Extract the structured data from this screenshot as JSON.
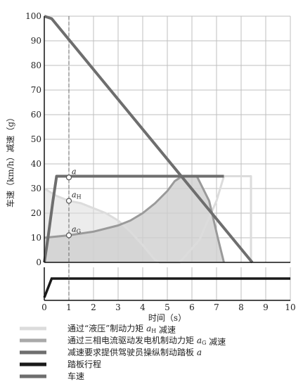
{
  "chart_data": {
    "type": "line",
    "x_axis": {
      "label": "时间（s）",
      "ticks": [
        "0",
        "1",
        "2",
        "3",
        "4",
        "5",
        "6",
        "7",
        "8",
        "9",
        "10"
      ],
      "range": [
        0,
        10
      ]
    },
    "y_axis": {
      "label": "车速（km/h）减速（g）",
      "ticks": [
        "0",
        "10",
        "20",
        "30",
        "40",
        "50",
        "60",
        "70",
        "80",
        "90",
        "100"
      ],
      "range": [
        0,
        100
      ]
    },
    "grid": true,
    "marker_line_x": 1,
    "series": [
      {
        "name": "通过“液压”制动力矩 aH 减速",
        "color": "#dcdcdc",
        "kind": "area+line",
        "points": [
          [
            0,
            30
          ],
          [
            0.5,
            27
          ],
          [
            1,
            25
          ],
          [
            1.5,
            24
          ],
          [
            2,
            22
          ],
          [
            2.5,
            20
          ],
          [
            3,
            17
          ],
          [
            3.5,
            12.5
          ],
          [
            4,
            7
          ],
          [
            4.5,
            1
          ],
          [
            4.7,
            0
          ],
          [
            5.5,
            0
          ],
          [
            6.3,
            9
          ],
          [
            7,
            25
          ],
          [
            7.3,
            35
          ],
          [
            8.4,
            35
          ],
          [
            8.4,
            0
          ]
        ]
      },
      {
        "name": "通过三相电流驱动发电机制动力矩 aG 减速",
        "color": "#a9a9a9",
        "kind": "area",
        "points": [
          [
            0,
            10
          ],
          [
            1,
            11
          ],
          [
            2,
            12.5
          ],
          [
            3,
            15
          ],
          [
            3.5,
            17
          ],
          [
            4,
            20
          ],
          [
            4.5,
            24
          ],
          [
            5,
            29
          ],
          [
            5.3,
            33
          ],
          [
            5.6,
            35
          ],
          [
            6.2,
            35
          ],
          [
            6.7,
            25
          ],
          [
            7.05,
            10
          ],
          [
            7.3,
            0
          ]
        ]
      },
      {
        "name": "减速要求提供驾驶员操纵制动踏板 a",
        "color": "#6e6e6e",
        "kind": "line",
        "points": [
          [
            0,
            0
          ],
          [
            0.15,
            10
          ],
          [
            0.35,
            25
          ],
          [
            0.5,
            35
          ],
          [
            7.3,
            35
          ]
        ]
      },
      {
        "name": "踏板行程",
        "color": "#1a1a1a",
        "kind": "line",
        "panel": "lower",
        "points": [
          [
            0,
            0
          ],
          [
            0.3,
            1
          ],
          [
            10,
            1
          ]
        ]
      },
      {
        "name": "车速",
        "color": "#6e6e6e",
        "kind": "line",
        "points": [
          [
            0,
            100
          ],
          [
            0.3,
            99
          ],
          [
            8.45,
            0
          ]
        ]
      }
    ],
    "annotations": [
      {
        "label": "a",
        "sub": "",
        "x": 1,
        "y": 34.5
      },
      {
        "label": "a",
        "sub": "H",
        "x": 1,
        "y": 25
      },
      {
        "label": "a",
        "sub": "G",
        "x": 1,
        "y": 11
      }
    ],
    "legend": {
      "position": "bottom",
      "items": [
        {
          "swatch": "#dcdcdc",
          "parts": [
            {
              "t": "通过“液压”制动力矩 ",
              "i": false
            },
            {
              "t": "a",
              "i": true
            },
            {
              "t": "H",
              "i": false,
              "sub": true
            },
            {
              "t": " 减速",
              "i": false
            }
          ]
        },
        {
          "swatch": "#a9a9a9",
          "parts": [
            {
              "t": "通过三相电流驱动发电机制动力矩 ",
              "i": false
            },
            {
              "t": "a",
              "i": true
            },
            {
              "t": "G",
              "i": false,
              "sub": true
            },
            {
              "t": " 减速",
              "i": false
            }
          ]
        },
        {
          "swatch": "#6e6e6e",
          "parts": [
            {
              "t": "减速要求提供驾驶员操纵制动踏板 ",
              "i": false
            },
            {
              "t": "a",
              "i": true
            }
          ]
        },
        {
          "swatch": "#1a1a1a",
          "parts": [
            {
              "t": "踏板行程",
              "i": false
            }
          ]
        },
        {
          "swatch": "#6e6e6e",
          "parts": [
            {
              "t": "车速",
              "i": false
            }
          ]
        }
      ]
    }
  }
}
